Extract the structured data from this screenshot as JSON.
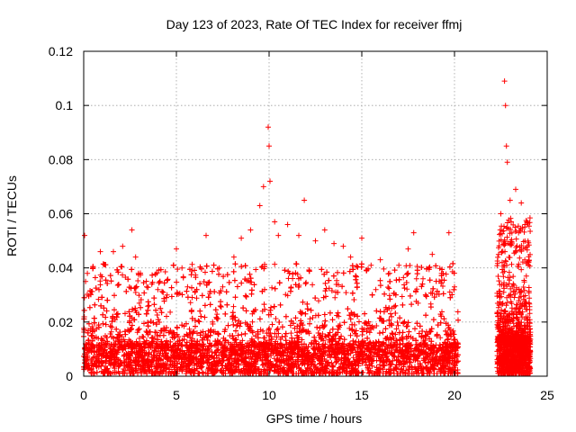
{
  "chart_data": {
    "type": "scatter",
    "title": "Day 123 of 2023, Rate Of TEC Index for receiver ffmj",
    "xlabel": "GPS time / hours",
    "ylabel": "ROTI / TECUs",
    "xlim": [
      0,
      25
    ],
    "ylim": [
      0,
      0.12
    ],
    "x_ticks": [
      "0",
      "5",
      "10",
      "15",
      "20",
      "25"
    ],
    "y_ticks": [
      "0",
      "0.02",
      "0.04",
      "0.06",
      "0.08",
      "0.1",
      "0.12"
    ],
    "grid": true,
    "marker": "plus",
    "color": "#ff0000",
    "series": [
      {
        "points": [
          [
            0.05,
            0.052
          ],
          [
            0.1,
            0.035
          ],
          [
            0.2,
            0.038
          ],
          [
            0.5,
            0.04
          ],
          [
            0.9,
            0.046
          ],
          [
            1.6,
            0.046
          ],
          [
            2.1,
            0.048
          ],
          [
            2.6,
            0.054
          ],
          [
            2.8,
            0.044
          ],
          [
            3.4,
            0.033
          ],
          [
            4.0,
            0.032
          ],
          [
            4.5,
            0.03
          ],
          [
            5.0,
            0.047
          ],
          [
            5.3,
            0.04
          ],
          [
            5.6,
            0.033
          ],
          [
            6.0,
            0.031
          ],
          [
            6.6,
            0.052
          ],
          [
            7.5,
            0.033
          ],
          [
            8.1,
            0.044
          ],
          [
            8.5,
            0.051
          ],
          [
            9.0,
            0.054
          ],
          [
            9.5,
            0.063
          ],
          [
            9.7,
            0.07
          ],
          [
            9.95,
            0.092
          ],
          [
            10.0,
            0.085
          ],
          [
            10.05,
            0.072
          ],
          [
            10.3,
            0.057
          ],
          [
            10.5,
            0.052
          ],
          [
            11.0,
            0.056
          ],
          [
            11.6,
            0.052
          ],
          [
            11.9,
            0.065
          ],
          [
            12.5,
            0.05
          ],
          [
            13.0,
            0.054
          ],
          [
            13.5,
            0.049
          ],
          [
            14.0,
            0.048
          ],
          [
            14.4,
            0.044
          ],
          [
            15.0,
            0.051
          ],
          [
            15.5,
            0.041
          ],
          [
            16.0,
            0.043
          ],
          [
            16.5,
            0.038
          ],
          [
            17.0,
            0.041
          ],
          [
            17.5,
            0.047
          ],
          [
            17.8,
            0.053
          ],
          [
            18.3,
            0.036
          ],
          [
            18.8,
            0.045
          ],
          [
            19.3,
            0.038
          ],
          [
            19.7,
            0.053
          ],
          [
            20.0,
            0.033
          ],
          [
            22.5,
            0.06
          ],
          [
            22.7,
            0.109
          ],
          [
            22.75,
            0.1
          ],
          [
            22.8,
            0.085
          ],
          [
            22.85,
            0.079
          ],
          [
            23.0,
            0.065
          ],
          [
            23.3,
            0.069
          ],
          [
            23.6,
            0.064
          ],
          [
            23.8,
            0.056
          ],
          [
            24.0,
            0.042
          ]
        ],
        "dense_bands": [
          {
            "x": [
              0.0,
              20.2
            ],
            "y_base": [
              0.0,
              0.012
            ],
            "y_top": [
              0.012,
              0.032
            ],
            "count": 6500
          },
          {
            "x": [
              22.3,
              24.1
            ],
            "y_base": [
              0.0,
              0.015
            ],
            "y_top": [
              0.015,
              0.045
            ],
            "count": 1300
          }
        ]
      }
    ]
  }
}
